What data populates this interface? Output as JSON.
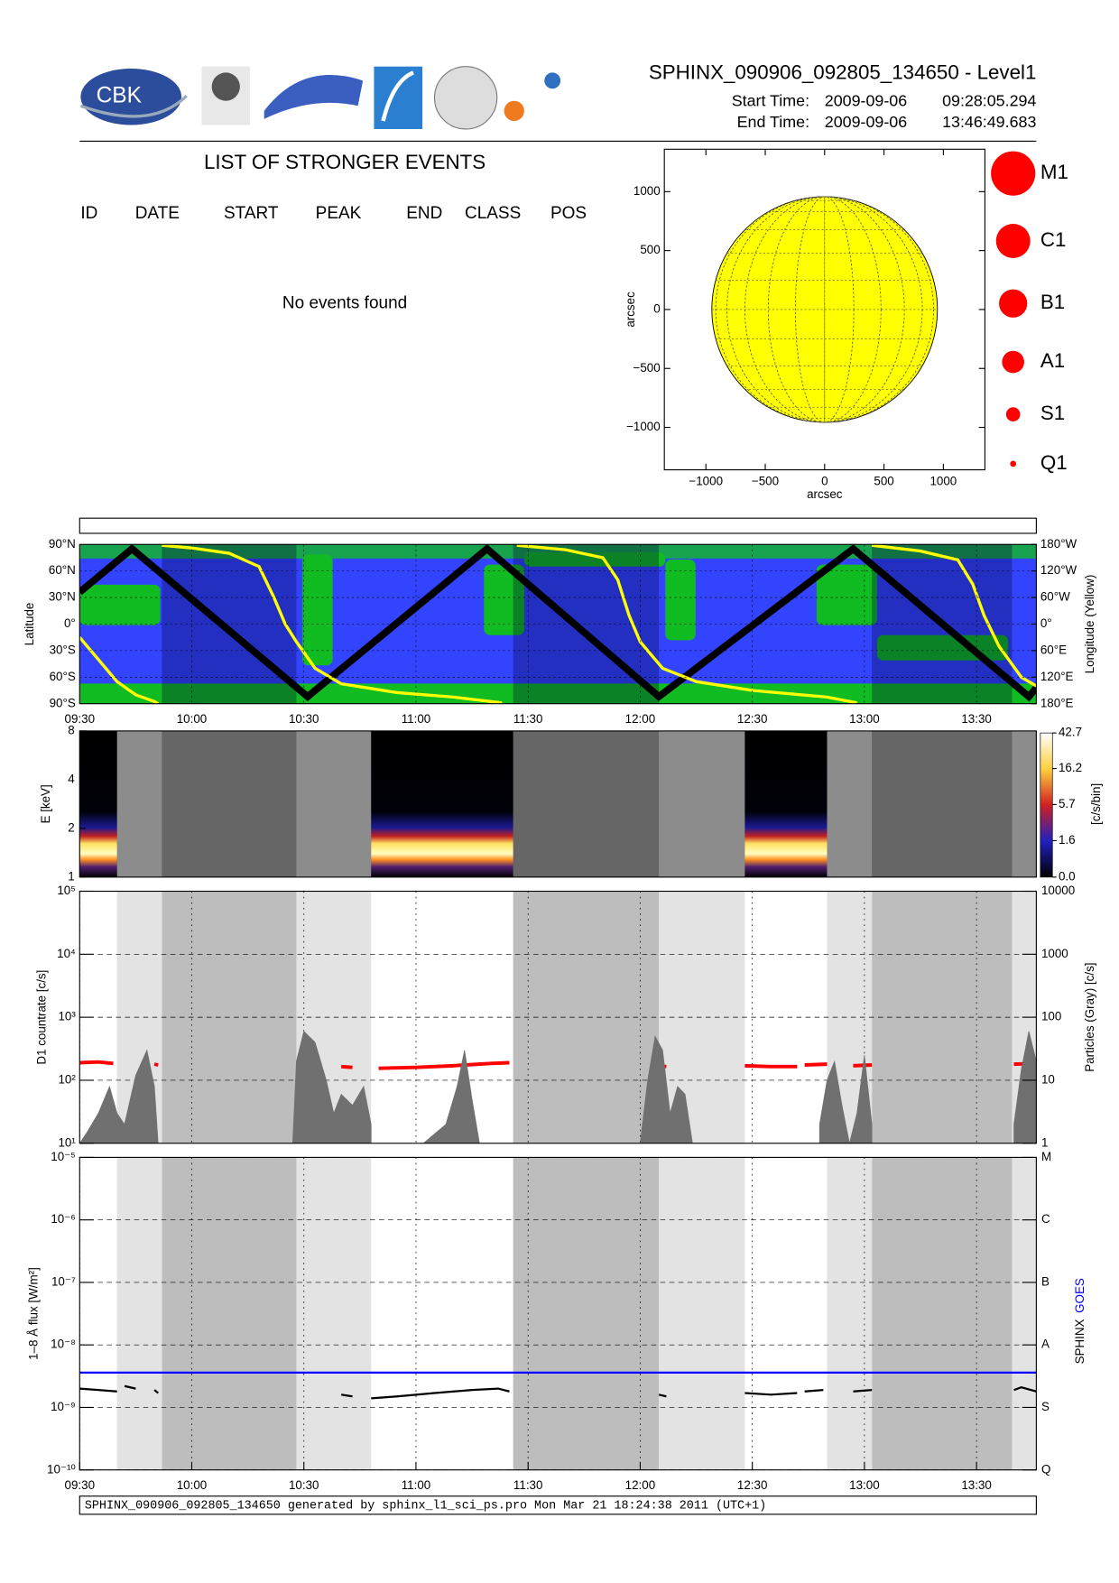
{
  "header": {
    "logo_text": "CBK",
    "title": "SPHINX_090906_092805_134650 - Level1",
    "start_label": "Start Time:",
    "start_date": "2009-09-06",
    "start_time": "09:28:05.294",
    "end_label": "End Time:",
    "end_date": "2009-09-06",
    "end_time": "13:46:49.683"
  },
  "events": {
    "title": "LIST OF STRONGER EVENTS",
    "columns": [
      "ID",
      "DATE",
      "START",
      "PEAK",
      "END",
      "CLASS",
      "POS"
    ],
    "message": "No events found"
  },
  "footer": "SPHINX_090906_092805_134650 generated by sphinx_l1_sci_ps.pro Mon Mar 21 18:24:38 2011 (UTC+1)",
  "chart_data": [
    {
      "type": "disk",
      "xlabel": "arcsec",
      "ylabel": "arcsec",
      "xlim": [
        -1350,
        1350
      ],
      "ylim": [
        -1360,
        1360
      ],
      "xticks": [
        {
          "value": -1000,
          "label": "−1000"
        },
        {
          "value": -500,
          "label": "−500"
        },
        0,
        500,
        1000
      ],
      "yticks": [
        {
          "value": -1000,
          "label": "−1000"
        },
        {
          "value": -500,
          "label": "−500"
        },
        0,
        500,
        1000
      ],
      "radius": 950,
      "color": "#ffff00",
      "legend": {
        "classes": [
          "M1",
          "C1",
          "B1",
          "A1",
          "S1",
          "Q1"
        ],
        "color": "#ff0000"
      }
    },
    {
      "type": "map",
      "ylabel": "Latitude",
      "y2label": "Longitude (Yellow)",
      "xlim": [
        570,
        826
      ],
      "xticks": [
        {
          "value": 570,
          "label": "09:30"
        },
        {
          "value": 600,
          "label": "10:00"
        },
        {
          "value": 630,
          "label": "10:30"
        },
        {
          "value": 660,
          "label": "11:00"
        },
        {
          "value": 690,
          "label": "11:30"
        },
        {
          "value": 720,
          "label": "12:00"
        },
        {
          "value": 750,
          "label": "12:30"
        },
        {
          "value": 780,
          "label": "13:00"
        },
        {
          "value": 810,
          "label": "13:30"
        }
      ],
      "ylim": [
        -90,
        90
      ],
      "yticks": [
        {
          "value": -90,
          "label": "90°S"
        },
        {
          "value": -60,
          "label": "60°S"
        },
        {
          "value": -30,
          "label": "30°S"
        },
        {
          "value": 0,
          "label": "0°"
        },
        {
          "value": 30,
          "label": "30°N"
        },
        {
          "value": 60,
          "label": "60°N"
        },
        {
          "value": 90,
          "label": "90°N"
        }
      ],
      "y2lim": [
        180,
        -180
      ],
      "y2ticks": [
        {
          "value": -180,
          "label": "180°W"
        },
        {
          "value": -120,
          "label": "120°W"
        },
        {
          "value": -60,
          "label": "60°W"
        },
        {
          "value": 0,
          "label": "0°"
        },
        {
          "value": 60,
          "label": "60°E"
        },
        {
          "value": 120,
          "label": "120°E"
        },
        {
          "value": 180,
          "label": "180°E"
        }
      ],
      "track": {
        "color": "#000000",
        "x": [
          570,
          584,
          631,
          679,
          725,
          777,
          824,
          826
        ],
        "values": [
          36,
          85,
          -82,
          85,
          -82,
          85,
          -82,
          -72
        ]
      },
      "longitude": {
        "color": "#ffff00",
        "axis": "y2",
        "x": [
          570,
          575,
          580,
          585,
          590,
          591,
          null,
          592,
          600,
          610,
          618,
          622,
          625,
          628,
          633,
          640,
          655,
          670,
          683,
          null,
          687,
          700,
          710,
          714,
          717,
          720,
          726,
          735,
          750,
          770,
          778,
          null,
          782,
          795,
          805,
          809,
          812,
          816,
          822,
          826
        ],
        "values": [
          30,
          80,
          130,
          160,
          175,
          180,
          null,
          -178,
          -172,
          -160,
          -130,
          -60,
          0,
          40,
          100,
          135,
          155,
          165,
          178,
          null,
          -178,
          -168,
          -150,
          -100,
          -20,
          40,
          100,
          130,
          150,
          165,
          178,
          null,
          -178,
          -165,
          -145,
          -90,
          -20,
          50,
          120,
          140
        ]
      }
    },
    {
      "type": "spectrogram",
      "ylabel": "E [keV]",
      "log": true,
      "ylim": [
        1,
        8
      ],
      "yticks": [
        1,
        2,
        4,
        8
      ],
      "xlim": [
        570,
        826
      ],
      "observing": [
        [
          570,
          580
        ],
        [
          648,
          686
        ],
        [
          748,
          770
        ]
      ],
      "colorbar": {
        "label": "[c/s/bin]",
        "lim": [
          0,
          42.7
        ],
        "ticks": [
          {
            "value": 0,
            "label": "0.0"
          },
          1.6,
          5.7,
          16.2,
          42.7
        ]
      }
    },
    {
      "type": "line",
      "ylabel": "D1 countrate [c/s]",
      "y2label": "Particles (Gray) [c/s]",
      "log": true,
      "grid": true,
      "xlim": [
        570,
        826
      ],
      "ylim": [
        10,
        100000
      ],
      "yticks": [
        {
          "value": 10,
          "label": "10¹"
        },
        {
          "value": 100,
          "label": "10²"
        },
        {
          "value": 1000,
          "label": "10³"
        },
        {
          "value": 10000,
          "label": "10⁴"
        },
        {
          "value": 100000,
          "label": "10⁵"
        }
      ],
      "y2lim": [
        1,
        10000
      ],
      "y2ticks": [
        1,
        10,
        100,
        1000,
        10000
      ],
      "night": [
        [
          592,
          628
        ],
        [
          686,
          725
        ],
        [
          782,
          819.5
        ]
      ],
      "saa": [
        [
          580,
          592
        ],
        [
          628,
          648
        ],
        [
          725,
          748
        ],
        [
          770,
          782
        ],
        [
          819.5,
          826
        ]
      ],
      "series": [
        {
          "color": "#ff0000",
          "x": [
            570,
            575,
            579,
            null,
            590,
            591,
            null,
            640,
            643,
            null,
            650,
            660,
            670,
            680,
            685,
            null,
            725,
            727,
            null,
            748,
            755,
            762,
            null,
            764,
            770,
            null,
            777,
            782,
            null,
            820,
            826
          ],
          "values": [
            190,
            195,
            185,
            null,
            180,
            175,
            null,
            165,
            160,
            null,
            155,
            160,
            170,
            185,
            190,
            null,
            170,
            165,
            null,
            170,
            165,
            165,
            null,
            175,
            180,
            null,
            170,
            175,
            null,
            180,
            185
          ]
        },
        {
          "color": "#707070",
          "axis": "y2",
          "x": [
            570,
            572,
            575,
            578,
            580,
            582,
            585,
            588,
            590,
            591,
            null,
            627,
            628,
            630,
            633,
            636,
            638,
            640,
            643,
            646,
            648,
            null,
            662,
            668,
            671,
            673,
            675,
            677,
            null,
            720,
            722,
            724,
            726,
            728,
            730,
            732,
            734,
            null,
            768,
            770,
            772,
            774,
            776,
            778,
            780,
            782,
            null,
            820,
            822,
            824,
            826
          ],
          "values": [
            1,
            1.5,
            3,
            8,
            3,
            2,
            12,
            30,
            8,
            1,
            null,
            1,
            20,
            60,
            40,
            10,
            3,
            6,
            4,
            8,
            2,
            null,
            1,
            2,
            8,
            30,
            5,
            1,
            null,
            1,
            10,
            50,
            30,
            3,
            8,
            6,
            1,
            null,
            2,
            10,
            20,
            4,
            1,
            3,
            25,
            2,
            null,
            2,
            15,
            60,
            20
          ]
        }
      ]
    },
    {
      "type": "line",
      "ylabel": "1–8 Å flux [W/m²]",
      "log": true,
      "grid": true,
      "xlim": [
        570,
        826
      ],
      "xticks": [
        {
          "value": 570,
          "label": "09:30"
        },
        {
          "value": 600,
          "label": "10:00"
        },
        {
          "value": 630,
          "label": "10:30"
        },
        {
          "value": 660,
          "label": "11:00"
        },
        {
          "value": 690,
          "label": "11:30"
        },
        {
          "value": 720,
          "label": "12:00"
        },
        {
          "value": 750,
          "label": "12:30"
        },
        {
          "value": 780,
          "label": "13:00"
        },
        {
          "value": 810,
          "label": "13:30"
        }
      ],
      "ylim": [
        1e-10,
        1e-05
      ],
      "yticks": [
        {
          "value": 1e-10,
          "label": "10⁻¹⁰"
        },
        {
          "value": 1e-09,
          "label": "10⁻⁹"
        },
        {
          "value": 1e-08,
          "label": "10⁻⁸"
        },
        {
          "value": 1e-07,
          "label": "10⁻⁷"
        },
        {
          "value": 1e-06,
          "label": "10⁻⁶"
        },
        {
          "value": 1e-05,
          "label": "10⁻⁵"
        }
      ],
      "y2lim": [
        1e-10,
        1e-05
      ],
      "y2ticks": [
        {
          "value": 1e-10,
          "label": "Q"
        },
        {
          "value": 1e-09,
          "label": "S"
        },
        {
          "value": 1e-08,
          "label": "A"
        },
        {
          "value": 1e-07,
          "label": "B"
        },
        {
          "value": 1e-06,
          "label": "C"
        },
        {
          "value": 1e-05,
          "label": "M"
        }
      ],
      "series": [
        {
          "name": "SPHINX",
          "color": "#000000",
          "x": [
            570,
            575,
            580,
            null,
            582,
            585,
            null,
            590,
            591,
            null,
            640,
            643,
            null,
            648,
            655,
            665,
            675,
            682,
            685,
            null,
            725,
            727,
            null,
            748,
            755,
            762,
            null,
            764,
            769,
            null,
            777,
            782,
            null,
            820,
            822,
            826
          ],
          "values": [
            2e-09,
            1.9e-09,
            1.8e-09,
            null,
            2.2e-09,
            2e-09,
            null,
            1.9e-09,
            1.7e-09,
            null,
            1.6e-09,
            1.5e-09,
            null,
            1.4e-09,
            1.5e-09,
            1.7e-09,
            1.9e-09,
            2e-09,
            1.8e-09,
            null,
            1.6e-09,
            1.5e-09,
            null,
            1.7e-09,
            1.6e-09,
            1.7e-09,
            null,
            1.8e-09,
            1.9e-09,
            null,
            1.8e-09,
            1.9e-09,
            null,
            1.9e-09,
            2.1e-09,
            1.8e-09
          ]
        },
        {
          "name": "GOES",
          "color": "#0000ff",
          "x": [
            570,
            826
          ],
          "values": [
            3.6e-09,
            3.6e-09
          ]
        }
      ]
    }
  ]
}
